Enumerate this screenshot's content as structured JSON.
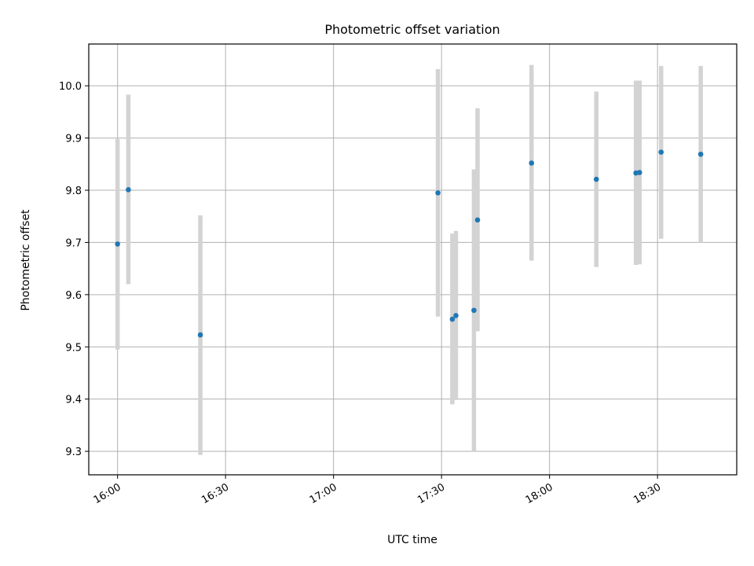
{
  "chart_data": {
    "type": "scatter",
    "title": "Photometric offset variation",
    "xlabel": "UTC time",
    "ylabel": "Photometric offset",
    "x_ticks": [
      "16:00",
      "16:30",
      "17:00",
      "17:30",
      "18:00",
      "18:30"
    ],
    "y_ticks": [
      "9.3",
      "9.4",
      "9.5",
      "9.6",
      "9.7",
      "9.8",
      "9.9",
      "10.0"
    ],
    "xlim": [
      "15:52",
      "18:52"
    ],
    "ylim": [
      9.255,
      10.08
    ],
    "grid": true,
    "colors": {
      "marker": "#1f77b4",
      "errorbar": "#d3d3d3",
      "grid": "#b0b0b0"
    },
    "points": [
      {
        "x": "16:00",
        "y": 9.697,
        "ylow": 9.495,
        "yhigh": 9.898
      },
      {
        "x": "16:03",
        "y": 9.801,
        "ylow": 9.62,
        "yhigh": 9.983
      },
      {
        "x": "16:23",
        "y": 9.523,
        "ylow": 9.293,
        "yhigh": 9.752
      },
      {
        "x": "17:29",
        "y": 9.795,
        "ylow": 9.558,
        "yhigh": 10.032
      },
      {
        "x": "17:33",
        "y": 9.553,
        "ylow": 9.39,
        "yhigh": 9.717
      },
      {
        "x": "17:34",
        "y": 9.56,
        "ylow": 9.398,
        "yhigh": 9.722
      },
      {
        "x": "17:39",
        "y": 9.57,
        "ylow": 9.3,
        "yhigh": 9.84
      },
      {
        "x": "17:40",
        "y": 9.743,
        "ylow": 9.53,
        "yhigh": 9.957
      },
      {
        "x": "17:55",
        "y": 9.852,
        "ylow": 9.665,
        "yhigh": 10.04
      },
      {
        "x": "18:13",
        "y": 9.821,
        "ylow": 9.653,
        "yhigh": 9.989
      },
      {
        "x": "18:24",
        "y": 9.833,
        "ylow": 9.657,
        "yhigh": 10.01
      },
      {
        "x": "18:25",
        "y": 9.834,
        "ylow": 9.658,
        "yhigh": 10.01
      },
      {
        "x": "18:31",
        "y": 9.873,
        "ylow": 9.707,
        "yhigh": 10.038
      },
      {
        "x": "18:42",
        "y": 9.869,
        "ylow": 9.7,
        "yhigh": 10.038
      }
    ]
  }
}
